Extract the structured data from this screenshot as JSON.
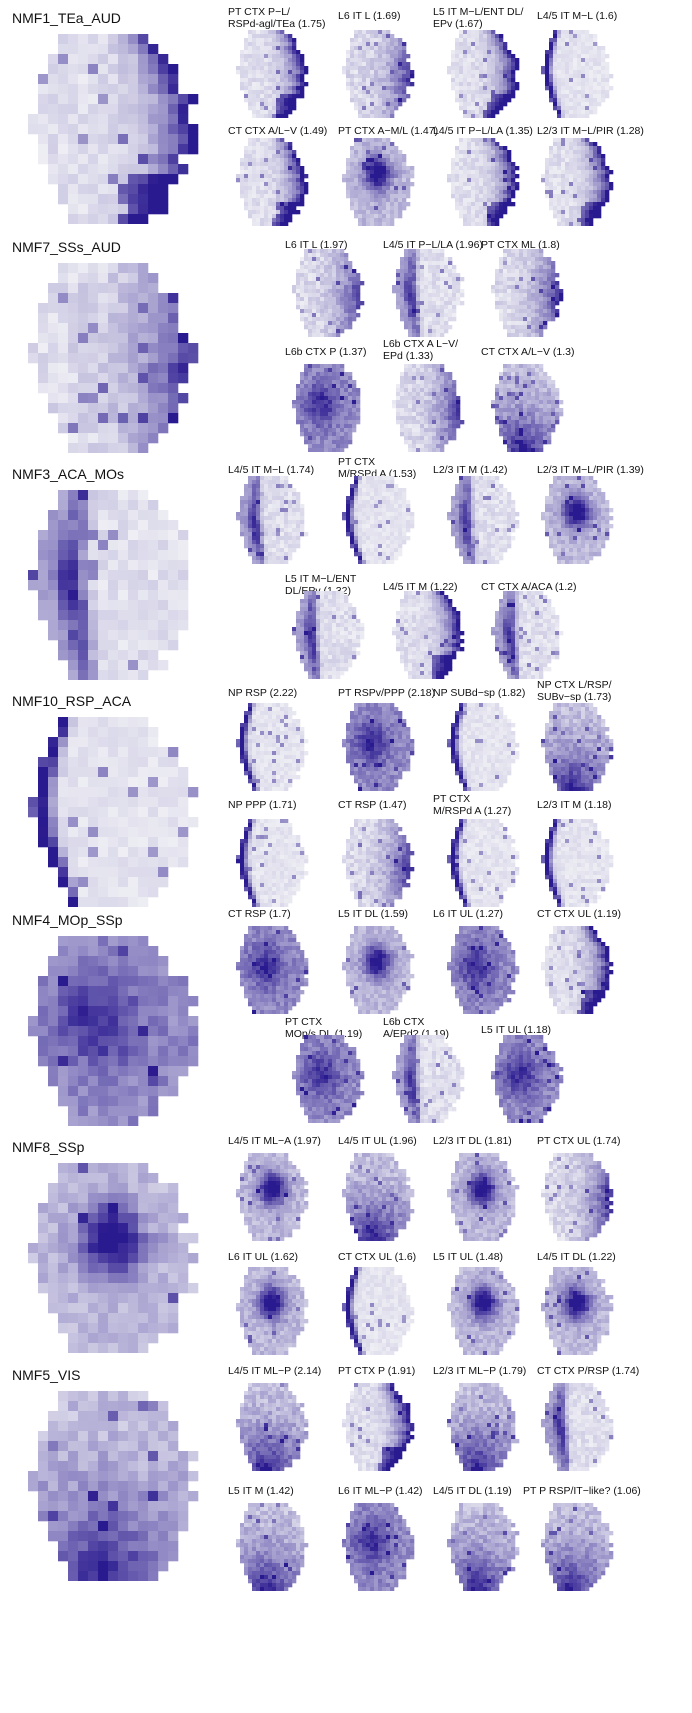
{
  "colors": {
    "accent": "#2a1a8f",
    "light": "#eeeef4",
    "background": "#ffffff"
  },
  "panels": [
    {
      "title": "NMF1_TEa_AUD",
      "subplots": [
        {
          "label": "PT CTX P−L/\nRSPd-agl/TEa (1.75)"
        },
        {
          "label": "L6 IT L (1.69)"
        },
        {
          "label": "L5 IT M−L/ENT DL/\nEPv (1.67)"
        },
        {
          "label": "L4/5 IT M−L (1.6)"
        },
        {
          "label": "CT CTX A/L−V (1.49)"
        },
        {
          "label": "PT CTX A−M/L (1.47)"
        },
        {
          "label": "L4/5 IT P−L/LA (1.35)"
        },
        {
          "label": "L2/3 IT M−L/PIR (1.28)"
        }
      ]
    },
    {
      "title": "NMF7_SSs_AUD",
      "subplots": [
        {
          "label": "L6 IT L (1.97)"
        },
        {
          "label": "L4/5 IT P−L/LA (1.96)"
        },
        {
          "label": "PT CTX ML (1.8)"
        },
        {
          "label": "L6b CTX P (1.37)"
        },
        {
          "label": "L6b CTX A L−V/\nEPd (1.33)"
        },
        {
          "label": "CT CTX A/L−V (1.3)"
        }
      ]
    },
    {
      "title": "NMF3_ACA_MOs",
      "subplots": [
        {
          "label": "L4/5 IT M−L (1.74)"
        },
        {
          "label": "PT CTX\nM/RSPd A (1.53)"
        },
        {
          "label": "L2/3 IT M (1.42)"
        },
        {
          "label": "L2/3 IT M−L/PIR (1.39)"
        },
        {
          "label": "L5 IT M−L/ENT\nDL/EPv (1.32)"
        },
        {
          "label": "L4/5 IT M (1.22)"
        },
        {
          "label": "CT CTX A/ACA (1.2)"
        }
      ]
    },
    {
      "title": "NMF10_RSP_ACA",
      "subplots": [
        {
          "label": "NP RSP (2.22)"
        },
        {
          "label": "PT RSPv/PPP (2.18)"
        },
        {
          "label": "NP SUBd−sp (1.82)"
        },
        {
          "label": "NP CTX L/RSP/\nSUBv−sp (1.73)"
        },
        {
          "label": "NP PPP (1.71)"
        },
        {
          "label": "CT RSP (1.47)"
        },
        {
          "label": "PT CTX\nM/RSPd A (1.27)"
        },
        {
          "label": "L2/3 IT M (1.18)"
        }
      ]
    },
    {
      "title": "NMF4_MOp_SSp",
      "subplots": [
        {
          "label": "CT RSP (1.7)"
        },
        {
          "label": "L5 IT DL (1.59)"
        },
        {
          "label": "L6 IT UL (1.27)"
        },
        {
          "label": "CT CTX UL (1.19)"
        },
        {
          "label": "PT CTX\nMOp/s DL (1.19)"
        },
        {
          "label": "L6b CTX\nA/EPd? (1.19)"
        },
        {
          "label": "L5 IT UL (1.18)"
        }
      ]
    },
    {
      "title": "NMF8_SSp",
      "subplots": [
        {
          "label": "L4/5 IT ML−A (1.97)"
        },
        {
          "label": "L4/5 IT UL (1.96)"
        },
        {
          "label": "L2/3 IT DL (1.81)"
        },
        {
          "label": "PT CTX UL (1.74)"
        },
        {
          "label": "L6 IT UL (1.62)"
        },
        {
          "label": "CT CTX UL (1.6)"
        },
        {
          "label": "L5 IT UL (1.48)"
        },
        {
          "label": "L4/5 IT DL (1.22)"
        }
      ]
    },
    {
      "title": "NMF5_VIS",
      "subplots": [
        {
          "label": "L4/5 IT ML−P (2.14)"
        },
        {
          "label": "PT CTX P (1.91)"
        },
        {
          "label": "L2/3 IT ML−P (1.79)"
        },
        {
          "label": "CT CTX P/RSP (1.74)"
        },
        {
          "label": "L5 IT M (1.42)"
        },
        {
          "label": "L6 IT ML−P (1.42)"
        },
        {
          "label": "L4/5 IT DL (1.19)"
        },
        {
          "label": "PT P RSP/IT−like? (1.06)"
        }
      ]
    }
  ]
}
